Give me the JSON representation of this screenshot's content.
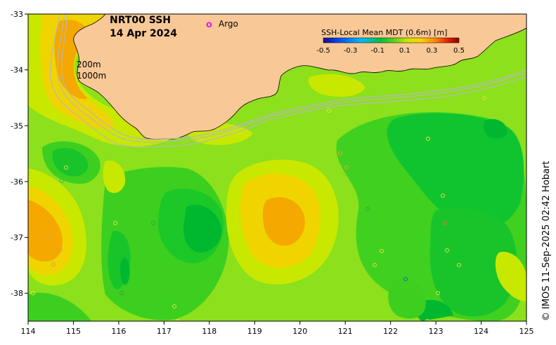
{
  "title": {
    "line1": "NRT00 SSH",
    "line2": "14 Apr 2024"
  },
  "legend": {
    "marker_symbol": "o",
    "marker_label": "Argo",
    "marker_color": "#e020e0"
  },
  "depth_labels": {
    "shallow": "200m",
    "deep": "1000m"
  },
  "colorbar": {
    "title": "SSH-Local Mean MDT (0.6m) [m]",
    "ticks": [
      "-0.5",
      "-0.3",
      "-0.1",
      "0.1",
      "0.3",
      "0.5"
    ],
    "stops": [
      "#1a0a8c",
      "#0050ff",
      "#00b8ff",
      "#00c040",
      "#60d020",
      "#c8e800",
      "#ffd000",
      "#ff8c00",
      "#e02000",
      "#8c0000"
    ]
  },
  "axes": {
    "x_ticks": [
      "114",
      "115",
      "116",
      "117",
      "118",
      "119",
      "120",
      "121",
      "122",
      "123",
      "124",
      "125"
    ],
    "y_ticks": [
      "-33",
      "-34",
      "-35",
      "-36",
      "-37",
      "-38"
    ],
    "lon_range": [
      114,
      125
    ],
    "lat_range": [
      -38.5,
      -33
    ]
  },
  "credit": "© IMOS 11-Sep-2025 02:42 Hobart",
  "colors": {
    "land": "#f8c896",
    "ocean_base": "#8ce01c",
    "low": "#00c830",
    "mid": "#40d020",
    "high": "#c8e800",
    "higher": "#f0d400",
    "highest": "#f5a800"
  }
}
